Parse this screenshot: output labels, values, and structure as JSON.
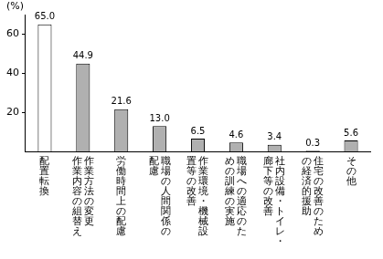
{
  "chart_data": {
    "type": "bar",
    "ylabel": "(%)",
    "categories": [
      "配置転換",
      [
        "作業方法の変更",
        "作業内容の組替え"
      ],
      "労働時間上の配慮",
      [
        "職場の人間関係の",
        "配慮"
      ],
      [
        "作業環境・機械設",
        "置等の改善"
      ],
      [
        "職場への適応のた",
        "めの訓練の実施"
      ],
      [
        "社内設備・トイレ・",
        "廊下等の改善"
      ],
      [
        "住宅の改善のため",
        "の経済的援助"
      ],
      "その他"
    ],
    "values": [
      65.0,
      44.9,
      21.6,
      13.0,
      6.5,
      4.6,
      3.4,
      0.3,
      5.6
    ],
    "value_labels": [
      "65.0",
      "44.9",
      "21.6",
      "13.0",
      "6.5",
      "4.6",
      "3.4",
      "0.3",
      "5.6"
    ],
    "colors": [
      "#ffffff",
      "#b0b0b0",
      "#b0b0b0",
      "#b0b0b0",
      "#b0b0b0",
      "#b0b0b0",
      "#b0b0b0",
      "#b0b0b0",
      "#b0b0b0"
    ],
    "ylim": [
      0,
      70
    ],
    "yticks": [
      20,
      40,
      60
    ],
    "grid": false,
    "data_labels": true
  }
}
